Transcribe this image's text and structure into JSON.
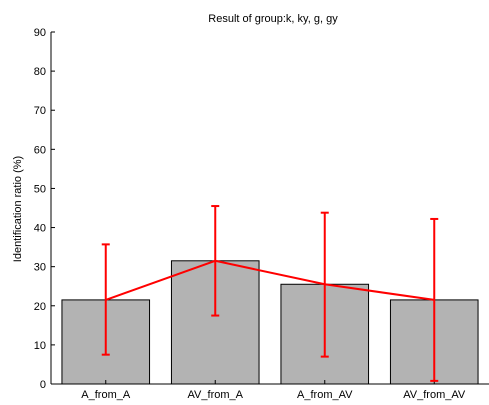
{
  "chart_data": {
    "type": "bar",
    "title": "Result of group:k, ky, g, gy",
    "xlabel": "",
    "ylabel": "Identification ratio (%)",
    "categories": [
      "A_from_A",
      "AV_from_A",
      "A_from_AV",
      "AV_from_AV"
    ],
    "values": [
      21.5,
      31.5,
      25.5,
      21.5
    ],
    "error_low": [
      7.5,
      17.5,
      7.0,
      0.8
    ],
    "error_high": [
      35.7,
      45.5,
      43.8,
      42.2
    ],
    "ylim": [
      0,
      90
    ],
    "yticks": [
      "0",
      "10",
      "20",
      "30",
      "40",
      "50",
      "60",
      "70",
      "80",
      "90"
    ],
    "grid": false,
    "bar_color": "#b3b3b3",
    "line_color": "#ff0000"
  }
}
